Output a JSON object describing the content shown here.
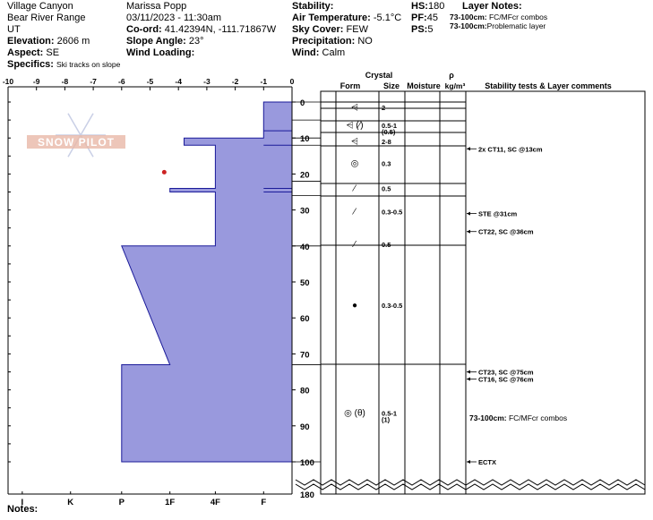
{
  "meta": {
    "location": "Village Canyon",
    "range": "Bear River Range",
    "state": "UT",
    "elevation_label": "Elevation:",
    "elevation": "2606 m",
    "aspect_label": "Aspect:",
    "aspect": "SE",
    "specifics_label": "Specifics:",
    "specifics": "Ski tracks on slope",
    "observer": "Marissa Popp",
    "datetime": "03/11/2023 - 11:30am",
    "coord_label": "Co-ord:",
    "coord": "41.42394N, -111.71867W",
    "slope_label": "Slope Angle:",
    "slope": "23°",
    "wind_loading_label": "Wind Loading:",
    "stability_label": "Stability:",
    "air_temp_label": "Air Temperature:",
    "air_temp": "-5.1°C",
    "sky_label": "Sky Cover:",
    "sky": "FEW",
    "precip_label": "Precipitation:",
    "precip": "NO",
    "wind_label": "Wind:",
    "wind": "Calm",
    "hs_label": "HS:",
    "hs": "180",
    "pf_label": "PF:",
    "pf": "45",
    "ps_label": "PS:",
    "ps": "5",
    "layer_notes_label": "Layer Notes:",
    "layer_notes": [
      {
        "range": "73-100cm:",
        "text": "FC/MFcr combos"
      },
      {
        "range": "73-100cm:",
        "text": "Problematic layer"
      }
    ],
    "notes_label": "Notes:"
  },
  "logo_text": "SNOW PILOT",
  "colors": {
    "hardness_fill": "#9999dd",
    "hardness_stroke": "#1a1a99",
    "temp_point": "#cc2222"
  },
  "table_headers": {
    "crystal": "Crystal",
    "form": "Form",
    "size": "Size",
    "moisture": "Moisture",
    "rho": "ρ",
    "density_unit": "kg/m³",
    "comments": "Stability tests & Layer comments"
  },
  "chart_data": {
    "type": "snow-profile",
    "temp_axis": {
      "ticks": [
        "-10",
        "-9",
        "-8",
        "-7",
        "-6",
        "-5",
        "-4",
        "-3",
        "-2",
        "-1",
        "0"
      ],
      "range": [
        -10,
        0
      ]
    },
    "depth_axis": {
      "ticks": [
        "0",
        "10",
        "20",
        "30",
        "40",
        "50",
        "60",
        "70",
        "80",
        "90",
        "100"
      ],
      "range": [
        0,
        100
      ],
      "bottom_label": "180"
    },
    "hardness_axis": {
      "labels": [
        "I",
        "K",
        "P",
        "1F",
        "4F",
        "F"
      ],
      "values": [
        -9.5,
        -7.8,
        -6,
        -4.3,
        -2.7,
        -1
      ]
    },
    "hardness_profile": [
      {
        "depth": 0,
        "value": -1
      },
      {
        "depth": 8,
        "value": -1
      },
      {
        "depth": 8,
        "value": -1
      },
      {
        "depth": 10,
        "value": -1
      },
      {
        "depth": 10,
        "value": -3.8
      },
      {
        "depth": 12,
        "value": -3.8
      },
      {
        "depth": 12,
        "value": -2.7
      },
      {
        "depth": 24,
        "value": -2.7
      },
      {
        "depth": 24,
        "value": -4.3
      },
      {
        "depth": 25,
        "value": -4.3
      },
      {
        "depth": 25,
        "value": -2.7
      },
      {
        "depth": 40,
        "value": -2.7
      },
      {
        "depth": 40,
        "value": -6
      },
      {
        "depth": 73,
        "value": -4.3
      },
      {
        "depth": 73,
        "value": -6
      },
      {
        "depth": 100,
        "value": -6
      },
      {
        "depth": 100,
        "value": 0
      },
      {
        "depth": 0,
        "value": 0
      }
    ],
    "layer_boundaries": [
      0,
      5,
      10,
      12,
      22,
      26,
      40,
      73,
      100
    ],
    "temperature_points": [
      {
        "temp": -4.5,
        "depth": 19.5
      }
    ],
    "layers": [
      {
        "form": "⩤",
        "size": "2",
        "size_sub": "",
        "y_depth": 1.5
      },
      {
        "form": "⩤ (⁄)",
        "size": "0.5-1",
        "size_sub": "(0.5)",
        "y_depth": 6.5
      },
      {
        "form": "⩤",
        "size": "2-8",
        "size_sub": "",
        "y_depth": 11
      },
      {
        "form": "◎",
        "size": "0.3",
        "size_sub": "",
        "y_depth": 17
      },
      {
        "form": "⁄",
        "size": "0.5",
        "size_sub": "",
        "y_depth": 24
      },
      {
        "form": "⁄",
        "size": "0.3-0.5",
        "size_sub": "",
        "y_depth": 30.5
      },
      {
        "form": "⁄",
        "size": "0.5",
        "size_sub": "",
        "y_depth": 39.5
      },
      {
        "form": "●",
        "size": "0.3-0.5",
        "size_sub": "",
        "y_depth": 56.5
      },
      {
        "form": "◎ (θ)",
        "size": "0.5-1",
        "size_sub": "(1)",
        "y_depth": 86.5
      }
    ],
    "stability_tests": [
      {
        "label": "2x CT11, SC @13cm",
        "depth": 13
      },
      {
        "label": "STE @31cm",
        "depth": 31
      },
      {
        "label": "CT22, SC @36cm",
        "depth": 36
      },
      {
        "label": "CT23, SC @75cm",
        "depth": 75
      },
      {
        "label": "CT16, SC @76cm",
        "depth": 76
      },
      {
        "label": "ECTX",
        "depth": 100
      }
    ],
    "layer_comments": [
      {
        "range": "73-100cm:",
        "text": "FC/MFcr combos",
        "depth": 88.5
      }
    ]
  }
}
